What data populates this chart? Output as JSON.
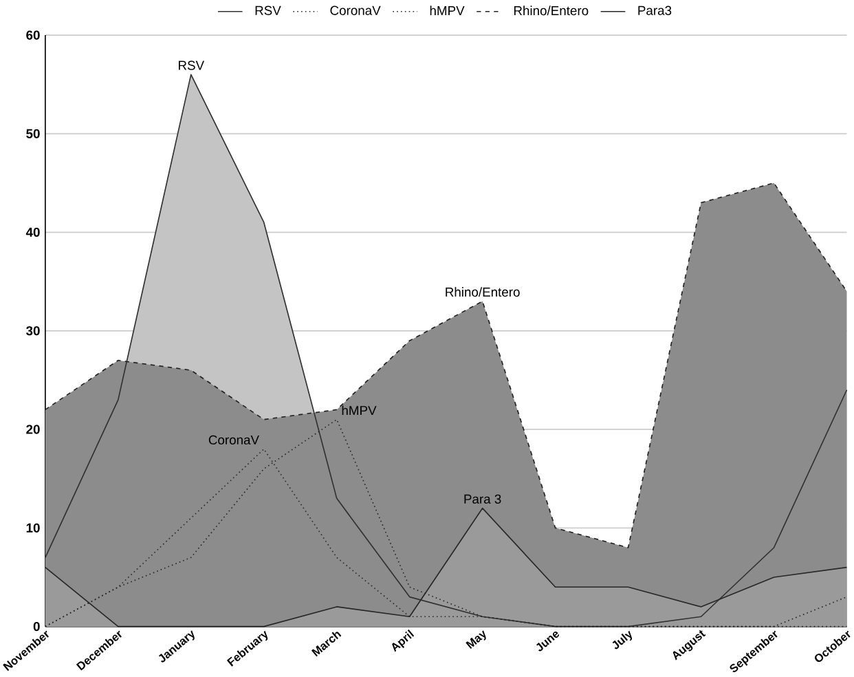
{
  "chart_data": {
    "type": "area",
    "categories": [
      "November",
      "December",
      "January",
      "February",
      "March",
      "April",
      "May",
      "June",
      "July",
      "August",
      "September",
      "October"
    ],
    "series": [
      {
        "name": "RSV",
        "color": "#c4c4c4",
        "line_style": "solid",
        "values": [
          7,
          23,
          56,
          41,
          13,
          3,
          1,
          0,
          0,
          1,
          8,
          24
        ]
      },
      {
        "name": "CoronaV",
        "color": "#b4b4b4",
        "line_style": "dotted",
        "values": [
          0,
          4,
          11,
          18,
          7,
          1,
          1,
          0,
          0,
          0,
          0,
          0
        ]
      },
      {
        "name": "hMPV",
        "color": "#a4a4a4",
        "line_style": "dotted",
        "values": [
          0,
          4,
          7,
          16,
          21,
          4,
          1,
          0,
          0,
          0,
          0,
          3
        ]
      },
      {
        "name": "Rhino/Entero",
        "color": "#8c8c8c",
        "line_style": "dashed",
        "values": [
          22,
          27,
          26,
          21,
          22,
          29,
          33,
          10,
          8,
          43,
          45,
          34
        ]
      },
      {
        "name": "Para3",
        "color": "#9a9a9a",
        "line_style": "solid",
        "values": [
          6,
          0,
          0,
          0,
          2,
          1,
          12,
          4,
          4,
          2,
          5,
          6
        ]
      }
    ],
    "ylim": [
      0,
      60
    ],
    "yticks": [
      0,
      10,
      20,
      30,
      40,
      50,
      60
    ],
    "grid": "y",
    "legend": "top",
    "annotations": [
      {
        "text": "RSV",
        "x": "January",
        "y": 56
      },
      {
        "text": "CoronaV",
        "x": "February",
        "y": 18
      },
      {
        "text": "hMPV",
        "x": "March",
        "y": 21
      },
      {
        "text": "Rhino/Entero",
        "x": "May",
        "y": 33
      },
      {
        "text": "Para 3",
        "x": "May",
        "y": 12
      }
    ]
  }
}
